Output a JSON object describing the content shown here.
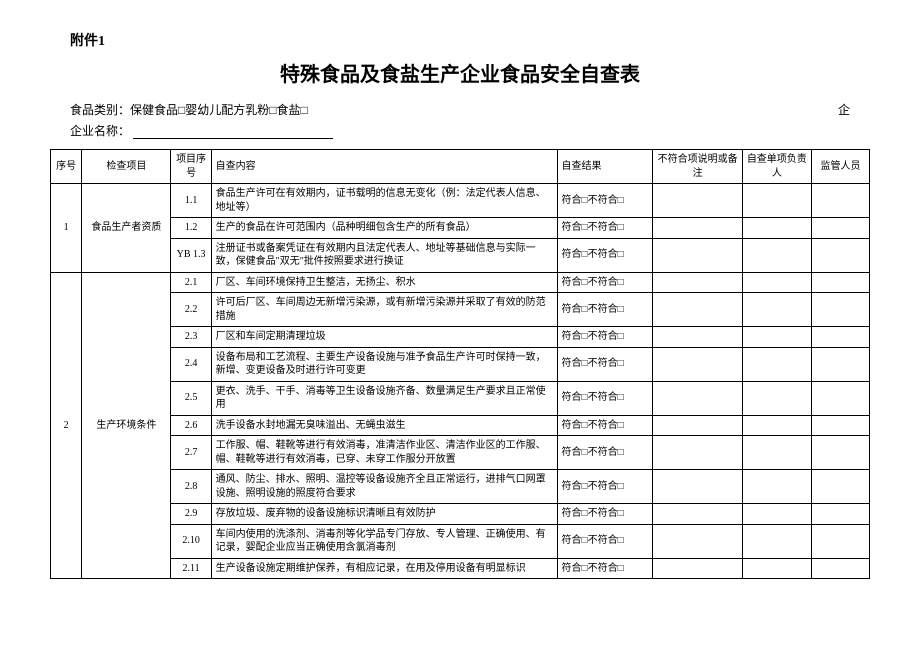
{
  "attach_label": "附件1",
  "title": "特殊食品及食盐生产企业食品安全自查表",
  "meta": {
    "category_label": "食品类别：保健食品□婴幼儿配方乳粉□食盐□",
    "company_prefix": "企业名称：",
    "company_suffix": "企"
  },
  "headers": {
    "seq": "序号",
    "check_item": "检查项目",
    "sub_seq": "项目序号",
    "content": "自查内容",
    "result": "自查结果",
    "note": "不符合项说明或备注",
    "person": "自查单项负责人",
    "supervisor": "监管人员"
  },
  "result_text": "符合□不符合□",
  "groups": [
    {
      "seq": "1",
      "item": "食品生产者资质",
      "rows": [
        {
          "sub": "1.1",
          "content": "食品生产许可在有效期内，证书载明的信息无变化（例：法定代表人信息、地址等）"
        },
        {
          "sub": "1.2",
          "content": "生产的食品在许可范围内（品种明细包含生产的所有食品）"
        },
        {
          "sub": "YB 1.3",
          "content": "注册证书或备案凭证在有效期内且法定代表人、地址等基础信息与实际一致，保健食品\"双无\"批件按照要求进行换证"
        }
      ]
    },
    {
      "seq": "2",
      "item": "生产环境条件",
      "rows": [
        {
          "sub": "2.1",
          "content": "厂区、车间环境保持卫生整洁，无扬尘、积水"
        },
        {
          "sub": "2.2",
          "content": "许可后厂区、车间周边无新增污染源，或有新增污染源并采取了有效的防范措施"
        },
        {
          "sub": "2.3",
          "content": "厂区和车间定期清理垃圾"
        },
        {
          "sub": "2.4",
          "content": "设备布局和工艺流程、主要生产设备设施与准予食品生产许可时保持一致，新增、变更设备及时进行许可变更"
        },
        {
          "sub": "2.5",
          "content": "更衣、洗手、干手、消毒等卫生设备设施齐备、数量满足生产要求且正常使用"
        },
        {
          "sub": "2.6",
          "content": "洗手设备水封地漏无臭味溢出、无蝇虫滋生"
        },
        {
          "sub": "2.7",
          "content": "工作服、帽、鞋靴等进行有效消毒，准清洁作业区、清洁作业区的工作服、帽、鞋靴等进行有效消毒，已穿、未穿工作服分开放置"
        },
        {
          "sub": "2.8",
          "content": "通风、防尘、排水、照明、温控等设备设施齐全且正常运行，进排气口网罩设施、照明设施的照度符合要求"
        },
        {
          "sub": "2.9",
          "content": "存放垃圾、废弃物的设备设施标识清晰且有效防护"
        },
        {
          "sub": "2.10",
          "content": "车间内使用的洗涤剂、消毒剂等化学品专门存放、专人管理、正确使用、有记录，婴配企业应当正确使用含氯消毒剂"
        },
        {
          "sub": "2.11",
          "content": "生产设备设施定期维护保养，有相应记录，在用及停用设备有明显标识"
        }
      ]
    }
  ]
}
